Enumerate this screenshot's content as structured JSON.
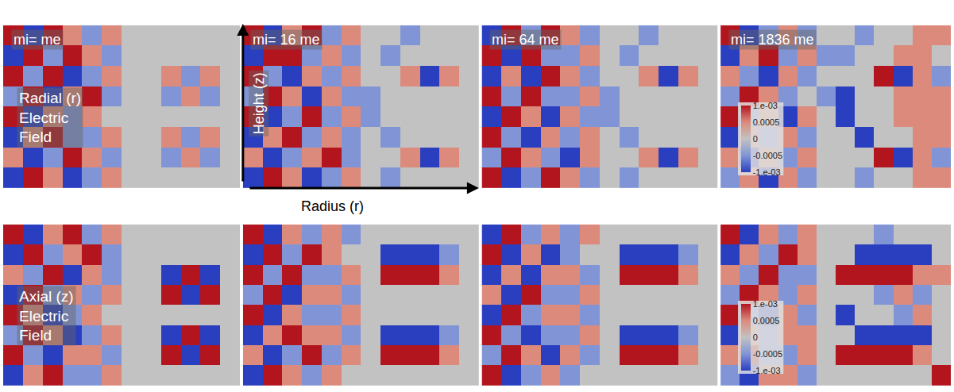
{
  "chart_data": [
    {
      "type": "heatmap",
      "title": "mi= me",
      "row_label": [
        "Radial (r)",
        "Electric",
        "Field"
      ],
      "tick_labels": false,
      "color_range": [
        -0.001,
        0.001
      ],
      "cells": [
        [
          0.001,
          -0.001,
          0.001,
          0.0005,
          -0.0005,
          0.0005,
          0,
          0,
          0,
          0,
          0,
          0
        ],
        [
          -0.001,
          0.001,
          -0.0005,
          0.001,
          0.0005,
          -0.0005,
          0,
          0,
          0,
          0,
          0,
          0
        ],
        [
          0.001,
          -0.0005,
          0.001,
          -0.001,
          -0.0005,
          0.0005,
          0,
          0,
          0.0005,
          -0.0005,
          0.0005,
          0
        ],
        [
          -0.0005,
          0.001,
          -0.001,
          0.0005,
          0.001,
          -0.0005,
          0,
          0,
          -0.0005,
          0.0005,
          -0.0005,
          0
        ],
        [
          0.001,
          -0.001,
          0.0005,
          -0.0005,
          0.0005,
          0,
          0,
          0,
          0,
          0,
          0,
          0
        ],
        [
          -0.001,
          0.0005,
          0.001,
          -0.0005,
          -0.0005,
          0.0005,
          0,
          0,
          0.0005,
          -0.0005,
          0.0005,
          0
        ],
        [
          0.0005,
          -0.001,
          -0.0005,
          0.001,
          0.0005,
          -0.0005,
          0,
          0,
          -0.0005,
          0.0005,
          -0.0005,
          0
        ],
        [
          -0.001,
          0.001,
          0.0005,
          -0.001,
          -0.0005,
          0.0005,
          0,
          0,
          0,
          0,
          0,
          0
        ]
      ]
    },
    {
      "type": "heatmap",
      "title": "mi= 16 me",
      "xlabel": "Radius (r)",
      "ylabel": "Height (z)",
      "tick_labels": false,
      "color_range": [
        -0.001,
        0.001
      ],
      "cells": [
        [
          0.001,
          -0.001,
          0.0005,
          0.001,
          -0.0005,
          0.0005,
          0,
          0,
          -0.0005,
          0,
          0,
          0
        ],
        [
          -0.001,
          0.001,
          0.001,
          -0.0005,
          0.0005,
          -0.0005,
          0,
          -0.0005,
          0,
          0,
          0,
          0
        ],
        [
          0.001,
          -0.0005,
          -0.001,
          0.0005,
          -0.0005,
          0.0005,
          0,
          0,
          0.0005,
          -0.001,
          0.0005,
          0
        ],
        [
          -0.0005,
          0.001,
          0.0005,
          -0.001,
          0.0005,
          -0.0005,
          -0.0005,
          0,
          0,
          0,
          0,
          0
        ],
        [
          0.001,
          -0.001,
          -0.0005,
          0.001,
          -0.0005,
          0.0005,
          -0.0005,
          0,
          0,
          0,
          0,
          0
        ],
        [
          -0.001,
          0.0005,
          0.001,
          -0.0005,
          0.0005,
          -0.0005,
          0,
          -0.0005,
          0,
          0,
          0,
          0
        ],
        [
          0.0005,
          -0.001,
          -0.0005,
          0.0005,
          0.001,
          -0.0005,
          0,
          0,
          0.0005,
          -0.001,
          0.0005,
          0
        ],
        [
          -0.001,
          0.001,
          0.0005,
          -0.001,
          -0.0005,
          0.0005,
          0,
          -0.0005,
          0,
          0,
          0,
          0
        ]
      ]
    },
    {
      "type": "heatmap",
      "title": "mi= 64 me",
      "tick_labels": false,
      "color_range": [
        -0.001,
        0.001
      ],
      "cells": [
        [
          -0.001,
          0.001,
          -0.0005,
          0.001,
          0.0005,
          -0.0005,
          0,
          0,
          -0.0005,
          0,
          0,
          0
        ],
        [
          0.001,
          -0.001,
          0.001,
          -0.0005,
          -0.0005,
          0.0005,
          0,
          -0.0005,
          0,
          0,
          0,
          0
        ],
        [
          -0.001,
          0.0005,
          -0.001,
          0.001,
          0.0005,
          -0.0005,
          0,
          0,
          0.0005,
          -0.001,
          0.0005,
          0
        ],
        [
          0.001,
          -0.0005,
          0.001,
          -0.0005,
          -0.0005,
          0.0005,
          -0.0005,
          0,
          0,
          0,
          0,
          0
        ],
        [
          -0.001,
          0.001,
          0.0005,
          -0.001,
          0.0005,
          -0.0005,
          -0.0005,
          0,
          0,
          0,
          0,
          0
        ],
        [
          0.001,
          -0.0005,
          -0.001,
          0.0005,
          -0.0005,
          0.0005,
          0,
          -0.0005,
          0,
          0,
          0,
          0
        ],
        [
          -0.0005,
          0.001,
          0.0005,
          -0.0005,
          -0.001,
          0.0005,
          0,
          0,
          0.0005,
          -0.001,
          0.0005,
          0
        ],
        [
          0.001,
          -0.001,
          -0.0005,
          0.001,
          0.0005,
          -0.0005,
          0,
          -0.0005,
          0,
          0,
          0,
          0
        ]
      ]
    },
    {
      "type": "heatmap",
      "title": "mi= 1836 me",
      "tick_labels": false,
      "color_range": [
        -0.001,
        0.001
      ],
      "colorbar_ticks": [
        {
          "value": 0.001,
          "label": "1.e-03"
        },
        0.0005,
        0,
        -0.0005,
        {
          "value": -0.001,
          "label": "-1.e-03"
        }
      ],
      "cells": [
        [
          0.001,
          -0.001,
          -0.0005,
          0.0005,
          -0.0005,
          0,
          0,
          -0.0005,
          0,
          0,
          0.0005,
          0.0005
        ],
        [
          -0.001,
          0.0005,
          0.001,
          -0.0005,
          0.0005,
          -0.0005,
          -0.0005,
          0,
          0,
          0.0005,
          0.0005,
          0
        ],
        [
          0.0005,
          -0.0005,
          -0.001,
          0.0005,
          -0.0005,
          0,
          0,
          0,
          0.001,
          -0.001,
          0.0005,
          -0.0005
        ],
        [
          -0.0005,
          0.001,
          0.0005,
          -0.0005,
          0,
          -0.0005,
          -0.001,
          0,
          0,
          0.0005,
          0.0005,
          0.0005
        ],
        [
          0.001,
          -0.0005,
          0.0005,
          -0.001,
          0.0005,
          0,
          -0.001,
          0,
          0,
          0.0005,
          0.0005,
          0.0005
        ],
        [
          -0.001,
          0.0005,
          -0.0005,
          0.0005,
          -0.0005,
          0,
          0,
          -0.001,
          0,
          0,
          0.0005,
          0.0005
        ],
        [
          0.0005,
          -0.001,
          0.0005,
          -0.0005,
          0.0005,
          0,
          0,
          0,
          0.001,
          -0.001,
          0.0005,
          -0.0005
        ],
        [
          -0.0005,
          0.0005,
          -0.001,
          0.0005,
          -0.0005,
          0,
          0,
          -0.0005,
          0,
          0,
          0.0005,
          0.0005
        ]
      ]
    },
    {
      "type": "heatmap",
      "row_label": [
        "Axial (z)",
        "Electric",
        "Field"
      ],
      "tick_labels": false,
      "color_range": [
        -0.001,
        0.001
      ],
      "cells": [
        [
          0.001,
          -0.001,
          0.0005,
          0.001,
          -0.0005,
          0.0005,
          0,
          0,
          0,
          0,
          0,
          0
        ],
        [
          -0.001,
          0.001,
          -0.0005,
          0.0005,
          0.001,
          -0.0005,
          0,
          0,
          0,
          0,
          0,
          0
        ],
        [
          0.0005,
          -0.0005,
          0.001,
          -0.001,
          0.0005,
          -0.0005,
          0,
          0,
          -0.001,
          0.001,
          -0.001,
          0
        ],
        [
          -0.001,
          0.001,
          -0.0005,
          0.0005,
          -0.0005,
          0.0005,
          0,
          0,
          0.001,
          -0.001,
          0.001,
          0
        ],
        [
          0.001,
          0.0005,
          -0.001,
          -0.0005,
          0.0005,
          0,
          0,
          0,
          0,
          0,
          0,
          0
        ],
        [
          -0.0005,
          0.001,
          0.0005,
          -0.001,
          -0.0005,
          0.0005,
          0,
          0,
          -0.001,
          0.001,
          -0.001,
          0
        ],
        [
          0.001,
          -0.0005,
          -0.001,
          0.0005,
          0.0005,
          -0.0005,
          0,
          0,
          0.001,
          -0.001,
          0.001,
          0
        ],
        [
          -0.001,
          0.0005,
          0.001,
          -0.0005,
          -0.0005,
          0.0005,
          0,
          0,
          0,
          0,
          0,
          0
        ]
      ]
    },
    {
      "type": "heatmap",
      "tick_labels": false,
      "color_range": [
        -0.001,
        0.001
      ],
      "cells": [
        [
          0.001,
          -0.001,
          0.0005,
          -0.0005,
          0.0005,
          -0.0005,
          0,
          0,
          0,
          0,
          0,
          0
        ],
        [
          -0.001,
          0.001,
          -0.0005,
          0.001,
          0.0005,
          0,
          0,
          -0.001,
          -0.001,
          -0.001,
          -0.0005,
          0
        ],
        [
          0.001,
          -0.0005,
          0.001,
          -0.0005,
          -0.0005,
          0.0005,
          0,
          0.001,
          0.001,
          0.001,
          0.0005,
          0
        ],
        [
          -0.0005,
          0.001,
          -0.001,
          0.0005,
          0.0005,
          -0.0005,
          0,
          0,
          0,
          0,
          0,
          0
        ],
        [
          0.001,
          -0.001,
          0.0005,
          -0.0005,
          -0.0005,
          0.0005,
          0,
          0,
          0,
          0,
          0,
          0
        ],
        [
          -0.001,
          0.0005,
          0.001,
          0.0005,
          0.0005,
          -0.0005,
          0,
          -0.001,
          -0.001,
          -0.001,
          -0.0005,
          0
        ],
        [
          0.0005,
          -0.001,
          -0.0005,
          0.001,
          -0.0005,
          0.0005,
          0,
          0.001,
          0.001,
          0.001,
          0.0005,
          0
        ],
        [
          -0.001,
          0.001,
          0.0005,
          -0.0005,
          0.0005,
          0,
          0,
          0,
          0,
          0,
          0,
          0
        ]
      ]
    },
    {
      "type": "heatmap",
      "tick_labels": false,
      "color_range": [
        -0.001,
        0.001
      ],
      "cells": [
        [
          -0.001,
          0.001,
          -0.0005,
          0.0005,
          -0.0005,
          0.0005,
          0,
          0,
          0,
          0,
          0,
          0
        ],
        [
          0.001,
          -0.001,
          0.0005,
          -0.001,
          -0.0005,
          0,
          0,
          -0.001,
          -0.001,
          -0.001,
          -0.0005,
          0
        ],
        [
          -0.001,
          0.0005,
          -0.001,
          0.0005,
          0.0005,
          -0.0005,
          0,
          0.001,
          0.001,
          0.001,
          0.0005,
          0
        ],
        [
          0.0005,
          -0.001,
          0.001,
          -0.0005,
          -0.0005,
          0.0005,
          0,
          0,
          0,
          0,
          0,
          0
        ],
        [
          -0.001,
          0.001,
          -0.0005,
          0.0005,
          0.0005,
          -0.0005,
          0,
          0,
          0,
          0,
          0,
          0
        ],
        [
          0.001,
          -0.0005,
          -0.001,
          -0.0005,
          -0.0005,
          0.0005,
          0,
          -0.001,
          -0.001,
          -0.001,
          -0.0005,
          0
        ],
        [
          -0.0005,
          0.001,
          0.0005,
          -0.001,
          0.0005,
          -0.0005,
          0,
          0.001,
          0.001,
          0.001,
          0.0005,
          0
        ],
        [
          0.001,
          -0.001,
          -0.0005,
          0.0005,
          -0.0005,
          0,
          0,
          0,
          0,
          0,
          0,
          0
        ]
      ]
    },
    {
      "type": "heatmap",
      "tick_labels": false,
      "color_range": [
        -0.001,
        0.001
      ],
      "colorbar_ticks": [
        {
          "value": 0.001,
          "label": "1.e-03"
        },
        0.0005,
        0,
        -0.0005,
        {
          "value": -0.001,
          "label": "-1.e-03"
        }
      ],
      "cells": [
        [
          0.001,
          -0.001,
          0.0005,
          -0.0005,
          0.0005,
          0,
          0,
          0,
          -0.0005,
          0,
          0,
          0
        ],
        [
          -0.001,
          0.0005,
          -0.0005,
          0.001,
          0.0005,
          0,
          0,
          -0.001,
          -0.001,
          -0.001,
          -0.001,
          0
        ],
        [
          0.0005,
          -0.0005,
          0.001,
          -0.0005,
          -0.0005,
          0,
          0.001,
          0.001,
          0.001,
          0.001,
          0.0005,
          0.0005
        ],
        [
          -0.0005,
          0.001,
          0.0005,
          -0.0005,
          0.0005,
          0,
          0,
          0,
          -0.0005,
          0.0005,
          -0.0005,
          0
        ],
        [
          0.001,
          -0.0005,
          -0.001,
          0.0005,
          -0.0005,
          0,
          -0.001,
          0,
          0,
          -0.0005,
          0.0005,
          0
        ],
        [
          -0.001,
          0.0005,
          -0.0005,
          0.0005,
          0.0005,
          0,
          0,
          -0.001,
          -0.001,
          -0.001,
          -0.001,
          0
        ],
        [
          0.0005,
          0.001,
          -0.0005,
          -0.0005,
          0.0005,
          0,
          0.001,
          0.001,
          0.001,
          0.001,
          0.0005,
          0
        ],
        [
          -0.0005,
          -0.001,
          0.0005,
          0.0005,
          -0.0005,
          0,
          0,
          0,
          0,
          0,
          0,
          0.001
        ]
      ]
    }
  ]
}
